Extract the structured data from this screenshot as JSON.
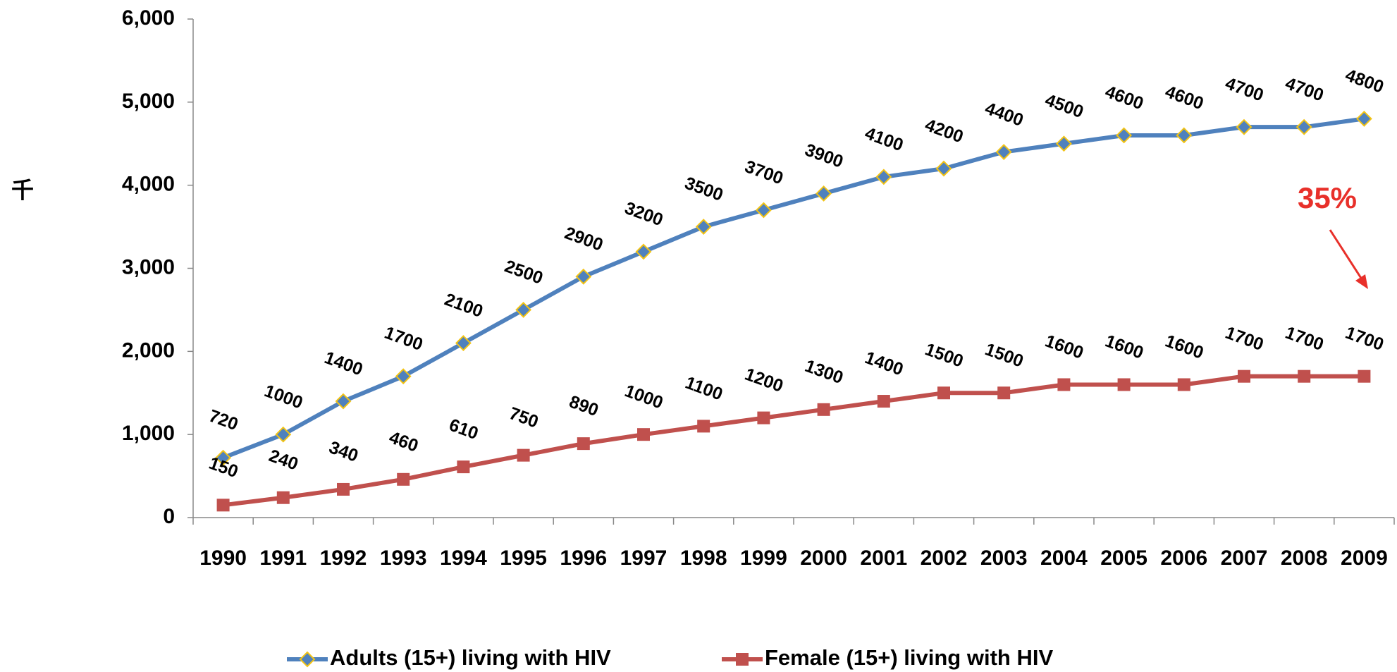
{
  "chart_data": {
    "type": "line",
    "y_label": "千",
    "categories": [
      "1990",
      "1991",
      "1992",
      "1993",
      "1994",
      "1995",
      "1996",
      "1997",
      "1998",
      "1999",
      "2000",
      "2001",
      "2002",
      "2003",
      "2004",
      "2005",
      "2006",
      "2007",
      "2008",
      "2009"
    ],
    "series": [
      {
        "name": "Adults (15+) living with HIV",
        "color": "#4f81bd",
        "marker_edge": "#f2c314",
        "values": [
          720,
          1000,
          1400,
          1700,
          2100,
          2500,
          2900,
          3200,
          3500,
          3700,
          3900,
          4100,
          4200,
          4400,
          4500,
          4600,
          4600,
          4700,
          4700,
          4800
        ]
      },
      {
        "name": "Female (15+) living with HIV",
        "color": "#c0504d",
        "values": [
          150,
          240,
          340,
          460,
          610,
          750,
          890,
          1000,
          1100,
          1200,
          1300,
          1400,
          1500,
          1500,
          1600,
          1600,
          1600,
          1700,
          1700,
          1700
        ]
      }
    ],
    "ylim": [
      0,
      6000
    ],
    "yticks": [
      0,
      {
        "value": 1000,
        "label": "1,000"
      },
      {
        "value": 2000,
        "label": "2,000"
      },
      {
        "value": 3000,
        "label": "3,000"
      },
      {
        "value": 4000,
        "label": "4,000"
      },
      {
        "value": 5000,
        "label": "5,000"
      },
      {
        "value": 6000,
        "label": "6,000"
      }
    ],
    "grid": false,
    "legend": "bottom",
    "annotation": {
      "text": "35%",
      "color": "#e8302a"
    }
  }
}
